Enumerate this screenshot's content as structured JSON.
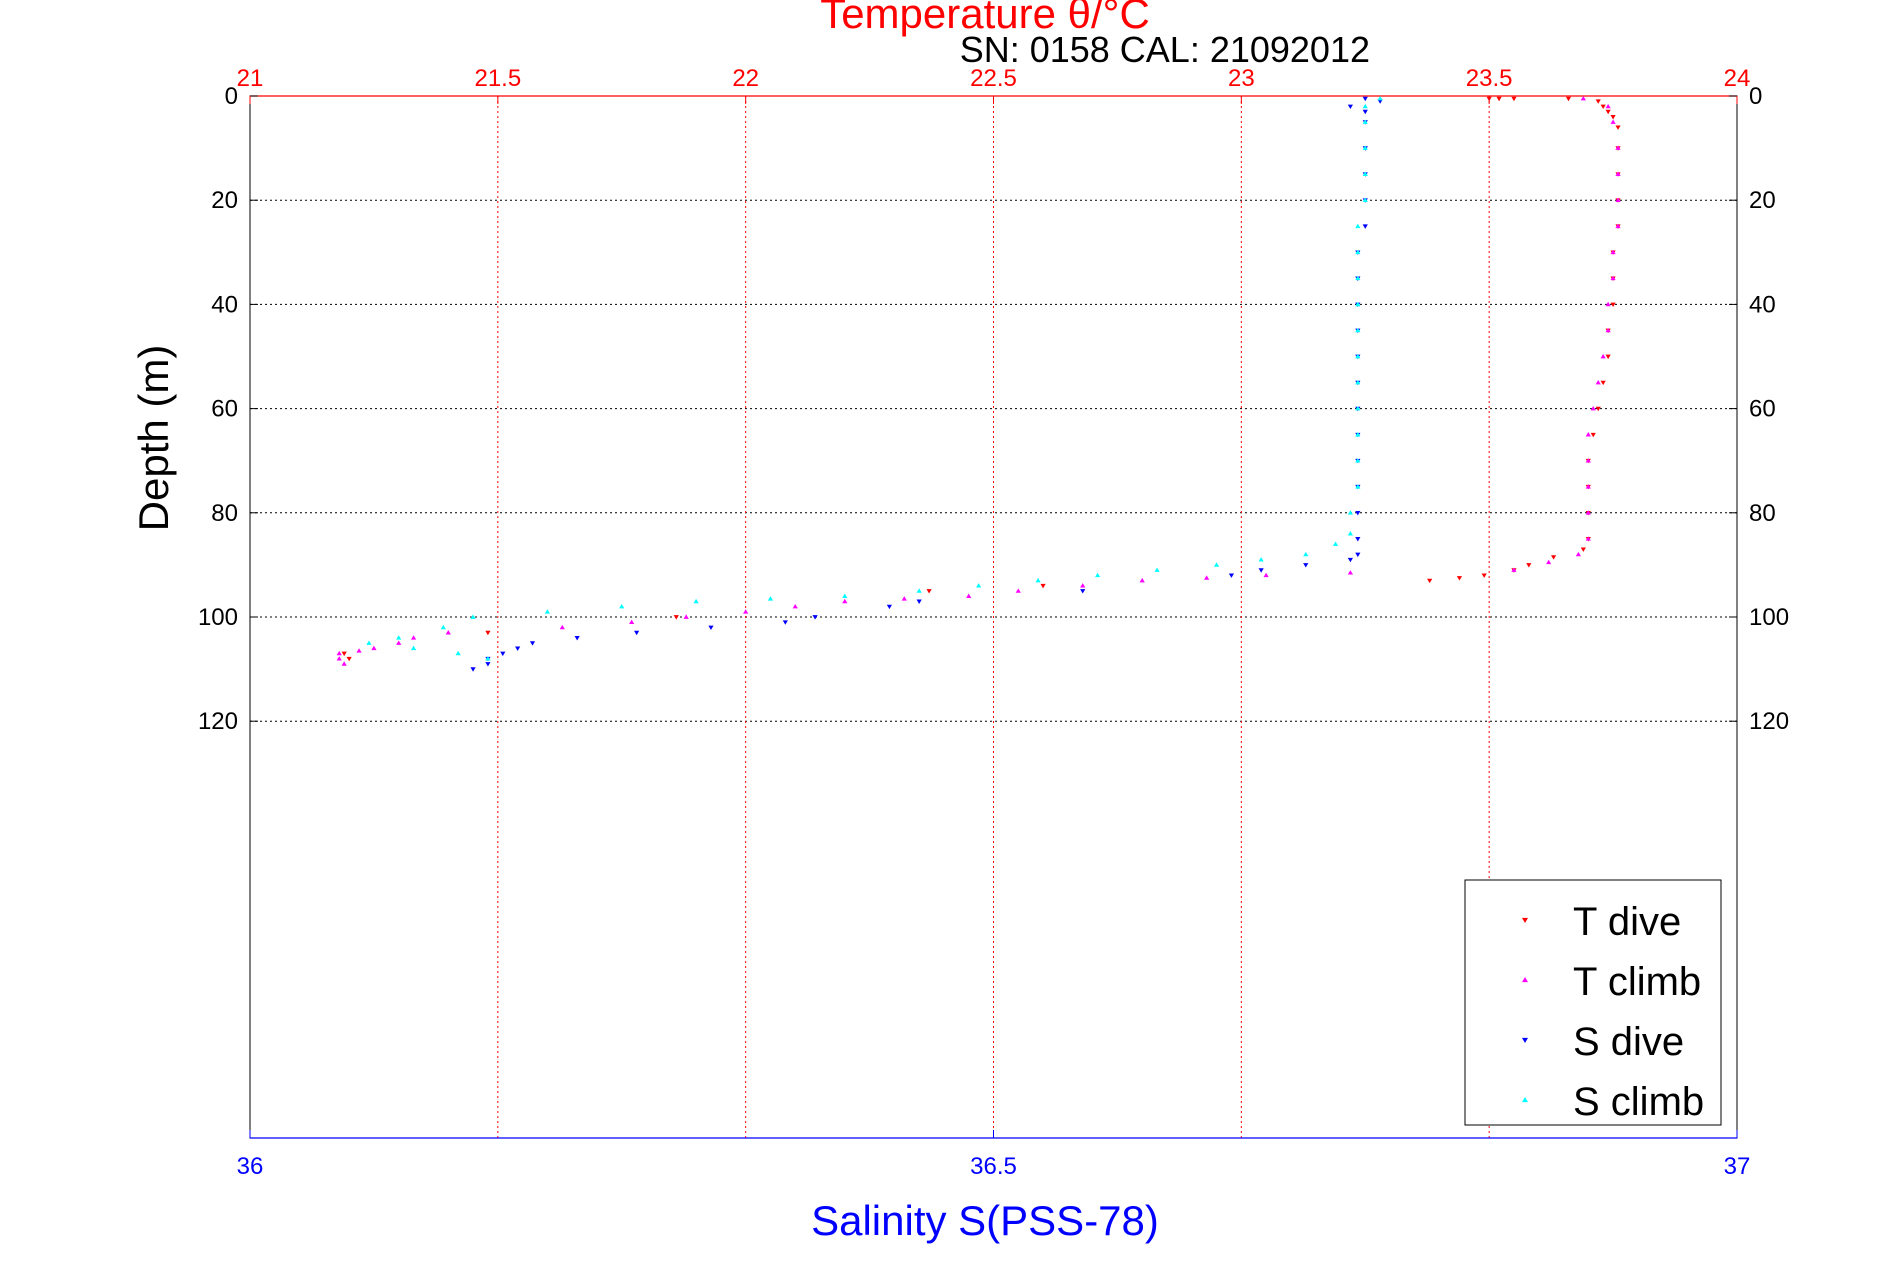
{
  "chart_data": {
    "type": "scatter",
    "title": "Temperature θ/°C",
    "subtitle": "SN: 0158  CAL: 21092012",
    "ylabel": "Depth (m)",
    "xlabel_bottom": "Salinity S(PSS-78)",
    "xlabel_top": "Temperature θ/°C",
    "y_reversed": true,
    "ylim": [
      0,
      200
    ],
    "y_ticks": [
      0,
      20,
      40,
      60,
      80,
      100,
      120
    ],
    "top_xlim": [
      21,
      24
    ],
    "top_ticks": [
      "21",
      "21.5",
      "22",
      "22.5",
      "23",
      "23.5",
      "24"
    ],
    "bottom_xlim": [
      36,
      37
    ],
    "bottom_ticks": [
      "36",
      "36.5",
      "37"
    ],
    "grid": true,
    "legend_position": "bottom-right",
    "colors": {
      "t_dive": "#ff0000",
      "t_climb": "#ff00ff",
      "s_dive": "#0000ff",
      "s_climb": "#00ffff",
      "top_axis": "#ff0000",
      "bottom_axis": "#0000ff",
      "title": "#ff0000",
      "subtitle": "#000000"
    },
    "series": [
      {
        "name": "T dive",
        "axis": "temperature",
        "marker": "triangle-down",
        "points": [
          [
            23.5,
            0.5
          ],
          [
            23.52,
            0.5
          ],
          [
            23.55,
            0.5
          ],
          [
            23.66,
            0.5
          ],
          [
            23.72,
            1
          ],
          [
            23.73,
            2
          ],
          [
            23.74,
            3
          ],
          [
            23.75,
            4
          ],
          [
            23.76,
            6
          ],
          [
            23.76,
            10
          ],
          [
            23.76,
            15
          ],
          [
            23.76,
            20
          ],
          [
            23.76,
            25
          ],
          [
            23.75,
            30
          ],
          [
            23.75,
            35
          ],
          [
            23.75,
            40
          ],
          [
            23.74,
            45
          ],
          [
            23.74,
            50
          ],
          [
            23.73,
            55
          ],
          [
            23.72,
            60
          ],
          [
            23.71,
            65
          ],
          [
            23.7,
            70
          ],
          [
            23.7,
            75
          ],
          [
            23.7,
            80
          ],
          [
            23.7,
            85
          ],
          [
            23.69,
            87
          ],
          [
            23.63,
            88.5
          ],
          [
            23.58,
            90
          ],
          [
            23.55,
            91
          ],
          [
            23.49,
            92
          ],
          [
            23.44,
            92.5
          ],
          [
            23.38,
            93
          ],
          [
            22.6,
            94
          ],
          [
            22.37,
            95
          ],
          [
            21.86,
            100
          ],
          [
            21.48,
            103
          ],
          [
            21.19,
            107
          ],
          [
            21.2,
            108
          ]
        ]
      },
      {
        "name": "T climb",
        "axis": "temperature",
        "marker": "triangle-up",
        "points": [
          [
            23.69,
            0.5
          ],
          [
            23.74,
            2
          ],
          [
            23.75,
            5
          ],
          [
            23.76,
            10
          ],
          [
            23.76,
            15
          ],
          [
            23.76,
            20
          ],
          [
            23.76,
            25
          ],
          [
            23.75,
            30
          ],
          [
            23.75,
            35
          ],
          [
            23.74,
            40
          ],
          [
            23.74,
            45
          ],
          [
            23.73,
            50
          ],
          [
            23.72,
            55
          ],
          [
            23.71,
            60
          ],
          [
            23.7,
            65
          ],
          [
            23.7,
            70
          ],
          [
            23.7,
            75
          ],
          [
            23.7,
            80
          ],
          [
            23.7,
            85
          ],
          [
            23.68,
            88
          ],
          [
            23.62,
            89.5
          ],
          [
            23.55,
            91
          ],
          [
            23.22,
            91.5
          ],
          [
            23.05,
            92
          ],
          [
            22.93,
            92.5
          ],
          [
            22.8,
            93
          ],
          [
            22.68,
            94
          ],
          [
            22.55,
            95
          ],
          [
            22.45,
            96
          ],
          [
            22.32,
            96.5
          ],
          [
            22.2,
            97
          ],
          [
            22.1,
            98
          ],
          [
            22.0,
            99
          ],
          [
            21.88,
            100
          ],
          [
            21.77,
            101
          ],
          [
            21.63,
            102
          ],
          [
            21.4,
            103
          ],
          [
            21.33,
            104
          ],
          [
            21.3,
            105
          ],
          [
            21.25,
            106
          ],
          [
            21.22,
            106.5
          ],
          [
            21.18,
            107
          ],
          [
            21.18,
            108
          ],
          [
            21.19,
            109
          ]
        ]
      },
      {
        "name": "S dive",
        "axis": "salinity",
        "marker": "triangle-down",
        "points": [
          [
            36.75,
            0.5
          ],
          [
            36.76,
            1
          ],
          [
            36.74,
            2
          ],
          [
            36.75,
            3
          ],
          [
            36.75,
            5
          ],
          [
            36.75,
            10
          ],
          [
            36.75,
            15
          ],
          [
            36.75,
            20
          ],
          [
            36.75,
            25
          ],
          [
            36.745,
            30
          ],
          [
            36.745,
            35
          ],
          [
            36.745,
            40
          ],
          [
            36.745,
            45
          ],
          [
            36.745,
            50
          ],
          [
            36.745,
            55
          ],
          [
            36.745,
            60
          ],
          [
            36.745,
            65
          ],
          [
            36.745,
            70
          ],
          [
            36.745,
            75
          ],
          [
            36.745,
            80
          ],
          [
            36.745,
            85
          ],
          [
            36.745,
            88
          ],
          [
            36.74,
            89
          ],
          [
            36.71,
            90
          ],
          [
            36.68,
            91
          ],
          [
            36.66,
            92
          ],
          [
            36.56,
            95
          ],
          [
            36.45,
            97
          ],
          [
            36.43,
            98
          ],
          [
            36.38,
            100
          ],
          [
            36.36,
            101
          ],
          [
            36.31,
            102
          ],
          [
            36.26,
            103
          ],
          [
            36.22,
            104
          ],
          [
            36.19,
            105
          ],
          [
            36.18,
            106
          ],
          [
            36.17,
            107
          ],
          [
            36.16,
            108
          ],
          [
            36.16,
            109
          ],
          [
            36.15,
            110
          ]
        ]
      },
      {
        "name": "S climb",
        "axis": "salinity",
        "marker": "triangle-up",
        "points": [
          [
            36.76,
            0.5
          ],
          [
            36.75,
            2
          ],
          [
            36.75,
            5
          ],
          [
            36.75,
            10
          ],
          [
            36.75,
            15
          ],
          [
            36.75,
            20
          ],
          [
            36.745,
            25
          ],
          [
            36.745,
            30
          ],
          [
            36.745,
            35
          ],
          [
            36.745,
            40
          ],
          [
            36.745,
            45
          ],
          [
            36.745,
            50
          ],
          [
            36.745,
            55
          ],
          [
            36.745,
            60
          ],
          [
            36.745,
            65
          ],
          [
            36.745,
            70
          ],
          [
            36.745,
            75
          ],
          [
            36.74,
            80
          ],
          [
            36.74,
            84
          ],
          [
            36.73,
            86
          ],
          [
            36.71,
            88
          ],
          [
            36.68,
            89
          ],
          [
            36.65,
            90
          ],
          [
            36.61,
            91
          ],
          [
            36.57,
            92
          ],
          [
            36.53,
            93
          ],
          [
            36.49,
            94
          ],
          [
            36.45,
            95
          ],
          [
            36.4,
            96
          ],
          [
            36.35,
            96.5
          ],
          [
            36.3,
            97
          ],
          [
            36.25,
            98
          ],
          [
            36.2,
            99
          ],
          [
            36.15,
            100
          ],
          [
            36.13,
            102
          ],
          [
            36.1,
            104
          ],
          [
            36.08,
            105
          ],
          [
            36.11,
            106
          ],
          [
            36.14,
            107
          ],
          [
            36.16,
            108
          ]
        ]
      }
    ]
  }
}
